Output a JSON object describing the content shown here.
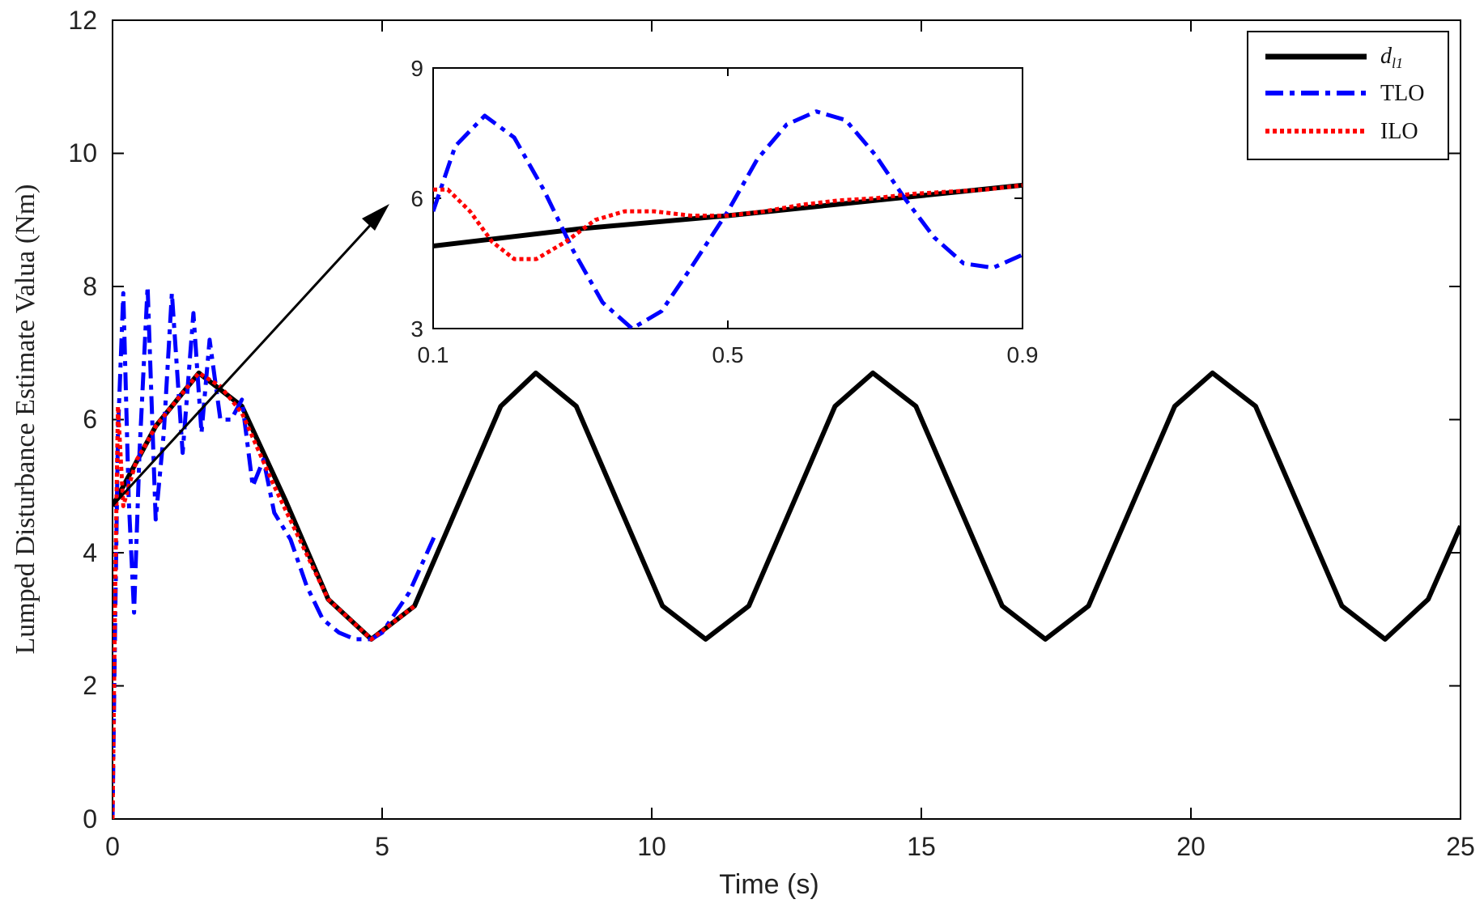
{
  "chart_data": [
    {
      "type": "line",
      "panel": "main",
      "xlabel": "Time (s)",
      "ylabel": "Lumped Disturbance Estimate Valua (Nm)",
      "xlim": [
        0,
        25
      ],
      "ylim": [
        0,
        12
      ],
      "xticks": [
        "0",
        "5",
        "10",
        "15",
        "20",
        "25"
      ],
      "yticks": [
        "0",
        "2",
        "4",
        "6",
        "8",
        "10",
        "12"
      ],
      "legend_position": "top-right",
      "series": [
        {
          "name": "d_l1",
          "style": "solid",
          "color": "#000000",
          "x": [
            0,
            0.8,
            1.6,
            2.4,
            3.2,
            4.0,
            4.8,
            5.6,
            6.4,
            7.2,
            7.85,
            8.6,
            9.4,
            10.2,
            11.0,
            11.8,
            12.6,
            13.4,
            14.1,
            14.9,
            15.7,
            16.5,
            17.3,
            18.1,
            18.9,
            19.7,
            20.4,
            21.2,
            22.0,
            22.8,
            23.6,
            24.4,
            25.0
          ],
          "y": [
            4.7,
            5.9,
            6.7,
            6.2,
            4.8,
            3.3,
            2.7,
            3.2,
            4.7,
            6.2,
            6.7,
            6.2,
            4.7,
            3.2,
            2.7,
            3.2,
            4.7,
            6.2,
            6.7,
            6.2,
            4.7,
            3.2,
            2.7,
            3.2,
            4.7,
            6.2,
            6.7,
            6.2,
            4.7,
            3.2,
            2.7,
            3.3,
            4.4
          ]
        },
        {
          "name": "TLO",
          "style": "dashdot",
          "color": "#0000ff",
          "x": [
            0,
            0.05,
            0.1,
            0.2,
            0.3,
            0.4,
            0.5,
            0.65,
            0.8,
            0.95,
            1.1,
            1.3,
            1.5,
            1.65,
            1.8,
            2.0,
            2.2,
            2.4,
            2.6,
            2.8,
            3.0,
            3.3,
            3.6,
            3.9,
            4.2,
            4.5,
            4.8,
            5.0,
            5.5,
            6.0
          ],
          "y": [
            0,
            3.0,
            5.8,
            7.9,
            4.8,
            3.1,
            5.5,
            8.0,
            4.5,
            5.8,
            7.9,
            5.5,
            7.6,
            5.8,
            7.2,
            6.0,
            6.0,
            6.3,
            5.0,
            5.4,
            4.6,
            4.2,
            3.5,
            3.0,
            2.8,
            2.7,
            2.7,
            2.8,
            3.4,
            4.3
          ]
        },
        {
          "name": "ILO",
          "style": "dotted",
          "color": "#ff0000",
          "x": [
            0,
            0.05,
            0.1,
            0.2,
            0.3,
            0.45,
            0.6,
            0.8,
            1.0,
            1.3,
            1.6,
            2.0,
            2.4,
            3.0,
            4.0,
            4.8,
            5.6
          ],
          "y": [
            0,
            3.5,
            6.2,
            4.7,
            5.0,
            5.4,
            5.6,
            5.9,
            6.1,
            6.4,
            6.7,
            6.5,
            6.1,
            5.0,
            3.3,
            2.7,
            3.2
          ]
        }
      ]
    },
    {
      "type": "line",
      "panel": "inset",
      "xlim": [
        0.1,
        0.9
      ],
      "ylim": [
        3,
        9
      ],
      "xticks": [
        "0.1",
        "0.5",
        "0.9"
      ],
      "yticks": [
        "3",
        "6",
        "9"
      ],
      "series": [
        {
          "name": "d_l1",
          "style": "solid",
          "color": "#000000",
          "x": [
            0.1,
            0.3,
            0.5,
            0.7,
            0.9
          ],
          "y": [
            4.9,
            5.3,
            5.6,
            5.95,
            6.3
          ]
        },
        {
          "name": "TLO",
          "style": "dashdot",
          "color": "#0000ff",
          "x": [
            0.1,
            0.13,
            0.17,
            0.21,
            0.25,
            0.29,
            0.33,
            0.37,
            0.41,
            0.45,
            0.5,
            0.54,
            0.58,
            0.62,
            0.66,
            0.7,
            0.74,
            0.78,
            0.82,
            0.86,
            0.9
          ],
          "y": [
            5.7,
            7.2,
            7.9,
            7.4,
            6.2,
            4.8,
            3.6,
            3.0,
            3.4,
            4.4,
            5.7,
            6.9,
            7.7,
            8.0,
            7.8,
            7.0,
            6.0,
            5.1,
            4.5,
            4.4,
            4.7
          ]
        },
        {
          "name": "ILO",
          "style": "dotted",
          "color": "#ff0000",
          "x": [
            0.1,
            0.12,
            0.15,
            0.18,
            0.21,
            0.24,
            0.28,
            0.32,
            0.36,
            0.4,
            0.45,
            0.5,
            0.55,
            0.6,
            0.65,
            0.7,
            0.75,
            0.8,
            0.85,
            0.9
          ],
          "y": [
            6.2,
            6.2,
            5.7,
            5.0,
            4.6,
            4.6,
            5.0,
            5.5,
            5.7,
            5.7,
            5.6,
            5.6,
            5.7,
            5.85,
            5.95,
            6.0,
            6.1,
            6.15,
            6.2,
            6.3
          ]
        }
      ]
    }
  ],
  "legend": {
    "entries": [
      {
        "label": "d",
        "sub": "l1"
      },
      {
        "label": "TLO",
        "sub": ""
      },
      {
        "label": "ILO",
        "sub": ""
      }
    ]
  }
}
